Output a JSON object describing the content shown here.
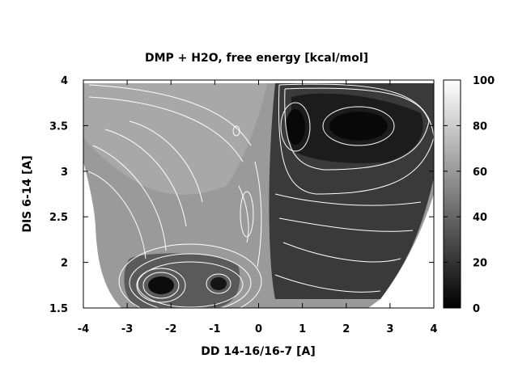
{
  "chart_data": {
    "type": "heatmap",
    "title": "DMP + H2O, free energy [kcal/mol]",
    "xlabel": "DD 14-16/16-7 [A]",
    "ylabel": "DIS 6-14 [A]",
    "xlim": [
      -4,
      4
    ],
    "ylim": [
      1.5,
      4
    ],
    "x_ticks": [
      "-4",
      "-3",
      "-2",
      "-1",
      "0",
      "1",
      "2",
      "3",
      "4"
    ],
    "y_ticks": [
      "1.5",
      "2",
      "2.5",
      "3",
      "3.5",
      "4"
    ],
    "colorbar": {
      "min": 0,
      "max": 100,
      "ticks": [
        "0",
        "20",
        "40",
        "60",
        "80",
        "100"
      ],
      "colormap": "grayscale: black (0) to white (100)"
    },
    "contour_lines": true,
    "minima": [
      {
        "x": -2.2,
        "y": 1.75,
        "value": 0
      },
      {
        "x": -0.9,
        "y": 1.75,
        "value": 2
      },
      {
        "x": 0.8,
        "y": 3.5,
        "value": 0
      },
      {
        "x": 2.3,
        "y": 3.55,
        "value": 0
      }
    ]
  }
}
